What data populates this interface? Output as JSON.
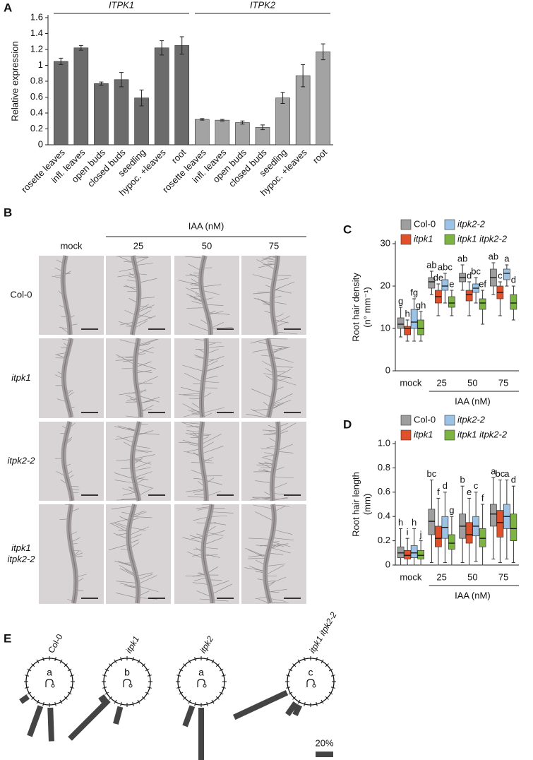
{
  "panels": [
    "A",
    "B",
    "C",
    "D",
    "E"
  ],
  "chart_data": [
    {
      "type": "bar",
      "ylabel": "Relative expression",
      "categories": [
        "rosette leaves",
        "infl. leaves",
        "open buds",
        "closed buds",
        "seedling",
        "hypoc. +leaves",
        "root"
      ],
      "series": [
        {
          "name": "ITPK1",
          "color": "#6b6b6b",
          "values": [
            1.05,
            1.22,
            0.77,
            0.82,
            0.59,
            1.22,
            1.25
          ],
          "errors": [
            0.04,
            0.03,
            0.02,
            0.09,
            0.1,
            0.09,
            0.11
          ]
        },
        {
          "name": "ITPK2",
          "color": "#a3a3a3",
          "values": [
            0.32,
            0.31,
            0.28,
            0.22,
            0.59,
            0.87,
            1.17
          ],
          "errors": [
            0.01,
            0.01,
            0.02,
            0.03,
            0.07,
            0.14,
            0.1
          ]
        }
      ],
      "ylim": [
        0,
        1.6
      ],
      "yticks": [
        0,
        0.2,
        0.4,
        0.6,
        0.8,
        1,
        1.2,
        1.4,
        1.6
      ]
    },
    {
      "type": "box",
      "ylabel": [
        "Root hair density",
        "(n° mm⁻¹)"
      ],
      "xlabel": "IAA (nM)",
      "categories": [
        "mock",
        "25",
        "50",
        "75"
      ],
      "series": [
        {
          "name": "Col-0",
          "color": "#9e9e9e",
          "median": [
            11,
            21,
            22,
            22
          ],
          "q1": [
            10,
            19.5,
            21,
            20
          ],
          "q3": [
            12.5,
            22,
            23,
            24
          ],
          "min": [
            8,
            18,
            19,
            18
          ],
          "max": [
            15,
            23.5,
            25,
            25.5
          ],
          "letters": [
            "g",
            "ab",
            "ab",
            "ab"
          ]
        },
        {
          "name": "itpk1",
          "color": "#e0502a",
          "median": [
            10,
            17.5,
            18,
            18.5
          ],
          "q1": [
            8.5,
            16,
            16.5,
            17
          ],
          "q3": [
            10.5,
            19,
            19,
            20
          ],
          "min": [
            7,
            13,
            13,
            13
          ],
          "max": [
            12,
            20.5,
            21,
            21
          ],
          "letters": [
            "h",
            "de",
            "d",
            "c"
          ]
        },
        {
          "name": "itpk2-2",
          "color": "#9cc3e6",
          "median": [
            11.5,
            20,
            19.5,
            23
          ],
          "q1": [
            10,
            19,
            18.5,
            21.5
          ],
          "q3": [
            14.5,
            21.5,
            20.5,
            24
          ],
          "min": [
            7,
            16,
            16,
            20
          ],
          "max": [
            17,
            23,
            22,
            25
          ],
          "letters": [
            "fg",
            "abc",
            "bc",
            "a"
          ]
        },
        {
          "name": "itpk1 itpk2-2",
          "color": "#7cb342",
          "median": [
            10,
            16,
            16,
            16
          ],
          "q1": [
            8.5,
            15,
            14.5,
            14.5
          ],
          "q3": [
            12,
            17.5,
            17,
            18
          ],
          "min": [
            7,
            13,
            11,
            12
          ],
          "max": [
            14,
            19,
            19,
            20
          ],
          "letters": [
            "gh",
            "e",
            "ef",
            "d"
          ]
        }
      ],
      "ylim": [
        0,
        30
      ],
      "yticks": [
        0,
        10,
        20,
        30
      ]
    },
    {
      "type": "box",
      "ylabel": [
        "Root hair length",
        "(mm)"
      ],
      "xlabel": "IAA (nM)",
      "categories": [
        "mock",
        "25",
        "50",
        "75"
      ],
      "series": [
        {
          "name": "Col-0",
          "color": "#9e9e9e",
          "median": [
            0.1,
            0.36,
            0.32,
            0.42
          ],
          "q1": [
            0.06,
            0.25,
            0.22,
            0.32
          ],
          "q3": [
            0.15,
            0.46,
            0.42,
            0.5
          ],
          "min": [
            0,
            0.02,
            0.02,
            0.05
          ],
          "max": [
            0.3,
            0.7,
            0.65,
            0.72
          ],
          "letters": [
            "h",
            "bc",
            "b",
            "a"
          ]
        },
        {
          "name": "itpk1",
          "color": "#e0502a",
          "median": [
            0.08,
            0.22,
            0.25,
            0.35
          ],
          "q1": [
            0.05,
            0.15,
            0.18,
            0.23
          ],
          "q3": [
            0.12,
            0.32,
            0.35,
            0.45
          ],
          "min": [
            0,
            0,
            0,
            0.02
          ],
          "max": [
            0.22,
            0.55,
            0.55,
            0.7
          ],
          "letters": [
            "i",
            "f",
            "e",
            "bc"
          ]
        },
        {
          "name": "itpk2-2",
          "color": "#9cc3e6",
          "median": [
            0.1,
            0.31,
            0.32,
            0.4
          ],
          "q1": [
            0.06,
            0.22,
            0.24,
            0.3
          ],
          "q3": [
            0.16,
            0.4,
            0.4,
            0.5
          ],
          "min": [
            0,
            0.02,
            0.03,
            0.05
          ],
          "max": [
            0.3,
            0.6,
            0.6,
            0.7
          ],
          "letters": [
            "h",
            "d",
            "c",
            "a"
          ]
        },
        {
          "name": "itpk1 itpk2-2",
          "color": "#7cb342",
          "median": [
            0.08,
            0.18,
            0.22,
            0.3
          ],
          "q1": [
            0.05,
            0.13,
            0.15,
            0.2
          ],
          "q3": [
            0.12,
            0.25,
            0.3,
            0.42
          ],
          "min": [
            0,
            0,
            0,
            0.02
          ],
          "max": [
            0.2,
            0.4,
            0.5,
            0.65
          ],
          "letters": [
            "j",
            "g",
            "f",
            "d"
          ]
        }
      ],
      "ylim": [
        0,
        1
      ],
      "yticks": [
        0,
        0.2,
        0.4,
        0.6,
        0.8,
        {
          "value": 1,
          "label": "1.0"
        }
      ]
    },
    {
      "type": "rose",
      "color": "#444444",
      "series": [
        {
          "name": "Col-0",
          "letter": "a",
          "angles": [
            235,
            200,
            178
          ],
          "values": [
            10,
            36,
            38
          ]
        },
        {
          "name": "itpk1",
          "letter": "b",
          "angles": [
            235,
            195,
            225
          ],
          "values": [
            8,
            20,
            62
          ]
        },
        {
          "name": "itpk2",
          "letter": "a",
          "angles": [
            200,
            180
          ],
          "values": [
            24,
            64
          ]
        },
        {
          "name": "itpk1 itpk2-2",
          "letter": "c",
          "angles": [
            205,
            215,
            245
          ],
          "values": [
            12,
            16,
            66
          ]
        }
      ],
      "scale": {
        "value": 20,
        "label": "20%"
      }
    }
  ],
  "micrographs": {
    "treatment": "IAA (nM)",
    "columns": [
      "mock",
      "25",
      "50",
      "75"
    ],
    "rows": [
      [
        "Col-0"
      ],
      [
        "itpk1"
      ],
      [
        "itpk2-2"
      ],
      [
        "itpk1",
        "itpk2-2"
      ]
    ]
  }
}
